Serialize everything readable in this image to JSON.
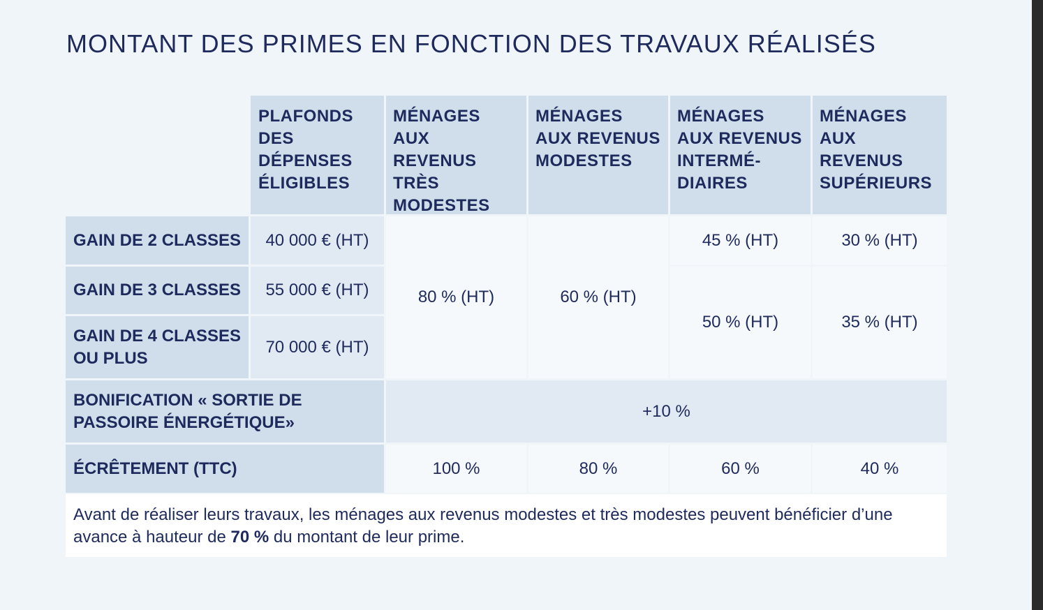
{
  "title": "MONTANT DES PRIMES EN FONCTION DES TRAVAUX RÉALISÉS",
  "columns": {
    "plafonds": [
      "PLAFONDS",
      "DES",
      "DÉPENSES",
      "ÉLIGIBLES"
    ],
    "tres_modestes": [
      "MÉNAGES AUX",
      "REVENUS TRÈS",
      "MODESTES"
    ],
    "modestes": [
      "MÉNAGES",
      "AUX REVENUS",
      "MODESTES"
    ],
    "intermediaires": [
      "MÉNAGES",
      "AUX REVENUS",
      "INTERMÉ-",
      "DIAIRES"
    ],
    "superieurs": [
      "MÉNAGES",
      "AUX",
      "REVENUS",
      "SUPÉRIEURS"
    ]
  },
  "rows": {
    "gain2": {
      "label": "GAIN DE 2 CLASSES",
      "plafond": "40 000 € (HT)",
      "intermediaires": "45 % (HT)",
      "superieurs": "30 % (HT)"
    },
    "gain3": {
      "label": "GAIN DE 3 CLASSES",
      "plafond": "55 000 € (HT)"
    },
    "gain4": {
      "label": [
        "GAIN DE 4 CLASSES",
        "OU PLUS"
      ],
      "plafond": "70 000 € (HT)"
    },
    "gain34": {
      "intermediaires": "50 % (HT)",
      "superieurs": "35 % (HT)"
    },
    "all_gains": {
      "tres_modestes": "80 % (HT)",
      "modestes": "60 % (HT)"
    }
  },
  "bonus": {
    "label": [
      "BONIFICATION « SORTIE DE",
      "PASSOIRE ÉNERGÉTIQUE»"
    ],
    "value": "+10 %"
  },
  "ecretement": {
    "label": "ÉCRÊTEMENT (TTC)",
    "tres_modestes": "100 %",
    "modestes": "80 %",
    "intermediaires": "60 %",
    "superieurs": "40 %"
  },
  "note": {
    "before": "Avant de réaliser leurs travaux, les ménages aux revenus modestes et très modestes peuvent bénéficier d’une avance à hauteur de ",
    "bold": "70 %",
    "after": " du montant de leur prime."
  }
}
